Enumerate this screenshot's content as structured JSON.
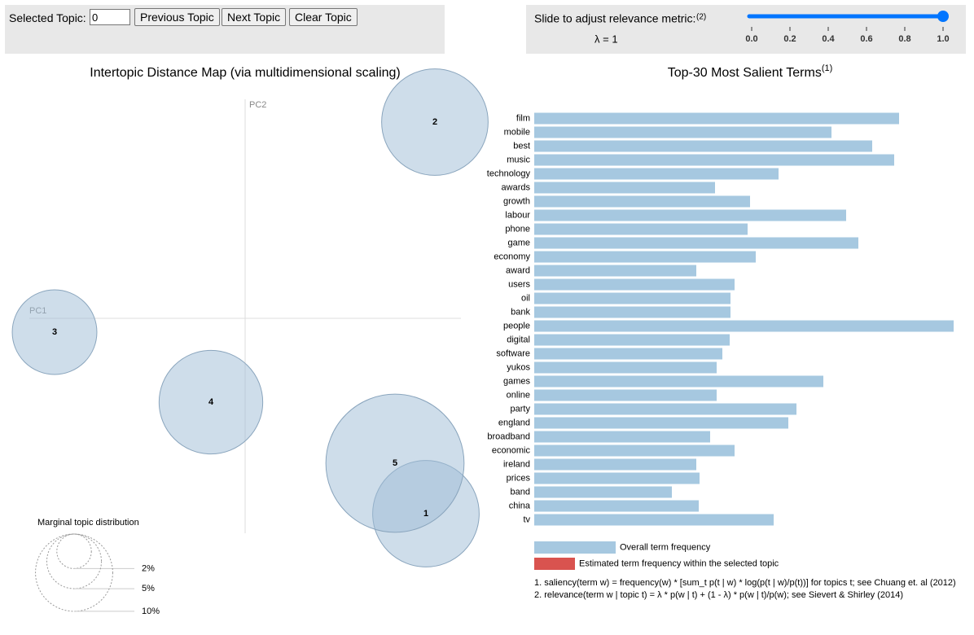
{
  "controls": {
    "selected_label": "Selected Topic:",
    "selected_value": "0",
    "buttons": [
      "Previous Topic",
      "Next Topic",
      "Clear Topic"
    ]
  },
  "slider": {
    "label": "Slide to adjust relevance metric:",
    "note": "(2)",
    "lambda_text": "λ = 1",
    "value": 1,
    "lim": [
      0,
      1
    ],
    "ticks": [
      {
        "value": 0,
        "label": "0.0"
      },
      {
        "value": 0.2,
        "label": "0.2"
      },
      {
        "value": 0.4,
        "label": "0.4"
      },
      {
        "value": 0.6,
        "label": "0.6"
      },
      {
        "value": 0.8,
        "label": "0.8"
      },
      {
        "value": 1,
        "label": "1.0"
      }
    ]
  },
  "chart_data": [
    {
      "type": "bubble",
      "title": "Intertopic Distance Map (via multidimensional scaling)",
      "x_axis_label": "PC1",
      "y_axis_label": "PC2",
      "categories": [
        "1",
        "2",
        "3",
        "4",
        "5"
      ],
      "x": [
        0.222,
        0.233,
        -0.234,
        -0.042,
        0.184
      ],
      "y": [
        -0.24,
        0.241,
        -0.017,
        -0.103,
        -0.178
      ],
      "sizes": [
        19,
        19,
        12,
        18,
        32
      ],
      "color": "#9dbcd6",
      "xlim": [
        -0.265,
        0.265
      ],
      "ylim": [
        -0.264,
        0.269
      ],
      "size_legend": {
        "title": "Marginal topic distribution",
        "ticks": [
          {
            "value": 2,
            "label": "2%"
          },
          {
            "value": 5,
            "label": "5%"
          },
          {
            "value": 10,
            "label": "10%"
          }
        ]
      }
    },
    {
      "type": "bar",
      "title": "Top-30 Most Salient Terms",
      "title_note": "(1)",
      "categories": [
        "film",
        "mobile",
        "best",
        "music",
        "technology",
        "awards",
        "growth",
        "labour",
        "phone",
        "game",
        "economy",
        "award",
        "users",
        "oil",
        "bank",
        "people",
        "digital",
        "software",
        "yukos",
        "games",
        "online",
        "party",
        "england",
        "broadband",
        "economic",
        "ireland",
        "prices",
        "band",
        "china",
        "tv"
      ],
      "values": [
        448,
        365,
        415,
        442,
        300,
        222,
        265,
        383,
        262,
        398,
        272,
        199,
        246,
        241,
        241,
        515,
        240,
        231,
        224,
        355,
        224,
        322,
        312,
        216,
        246,
        199,
        203,
        169,
        202,
        294
      ],
      "color": "#a6c8e0",
      "xlim": [
        0,
        515
      ],
      "legend_entries": [
        {
          "name": "Overall term frequency",
          "color": "#a6c8e0"
        },
        {
          "name": "Estimated term frequency within the selected topic",
          "color": "#d9534f"
        }
      ],
      "footnotes": [
        "1. saliency(term w) = frequency(w) * [sum_t p(t | w) * log(p(t | w)/p(t))] for topics t; see Chuang et. al (2012)",
        "2. relevance(term w | topic t) = λ * p(w | t) + (1 - λ) * p(w | t)/p(w); see Sievert & Shirley (2014)"
      ]
    }
  ]
}
